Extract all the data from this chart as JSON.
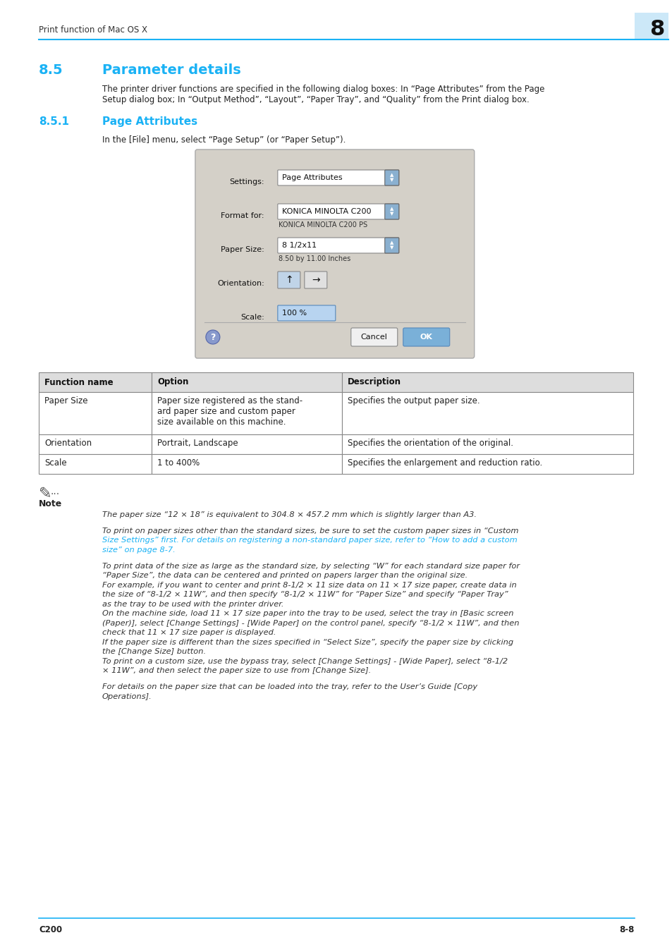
{
  "page_bg": "#ffffff",
  "header_text": "Print function of Mac OS X",
  "header_number": "8",
  "header_bg": "#cce8f8",
  "header_line_color": "#1ab2f5",
  "section_color": "#1ab2f5",
  "section_body": "The printer driver functions are specified in the following dialog boxes: In “Page Attributes” from the Page\nSetup dialog box; In “Output Method”, “Layout”, “Paper Tray”, and “Quality” from the Print dialog box.",
  "subsection_body": "In the [File] menu, select “Page Setup” (or “Paper Setup”).",
  "dialog_bg": "#d4d0c8",
  "table_headers": [
    "Function name",
    "Option",
    "Description"
  ],
  "table_rows": [
    [
      "Paper Size",
      "Paper size registered as the stand-\nard paper size and custom paper\nsize available on this machine.",
      "Specifies the output paper size."
    ],
    [
      "Orientation",
      "Portrait, Landscape",
      "Specifies the orientation of the original."
    ],
    [
      "Scale",
      "1 to 400%",
      "Specifies the enlargement and reduction ratio."
    ]
  ],
  "footer_left": "C200",
  "footer_right": "8-8",
  "footer_line_color": "#1ab2f5"
}
